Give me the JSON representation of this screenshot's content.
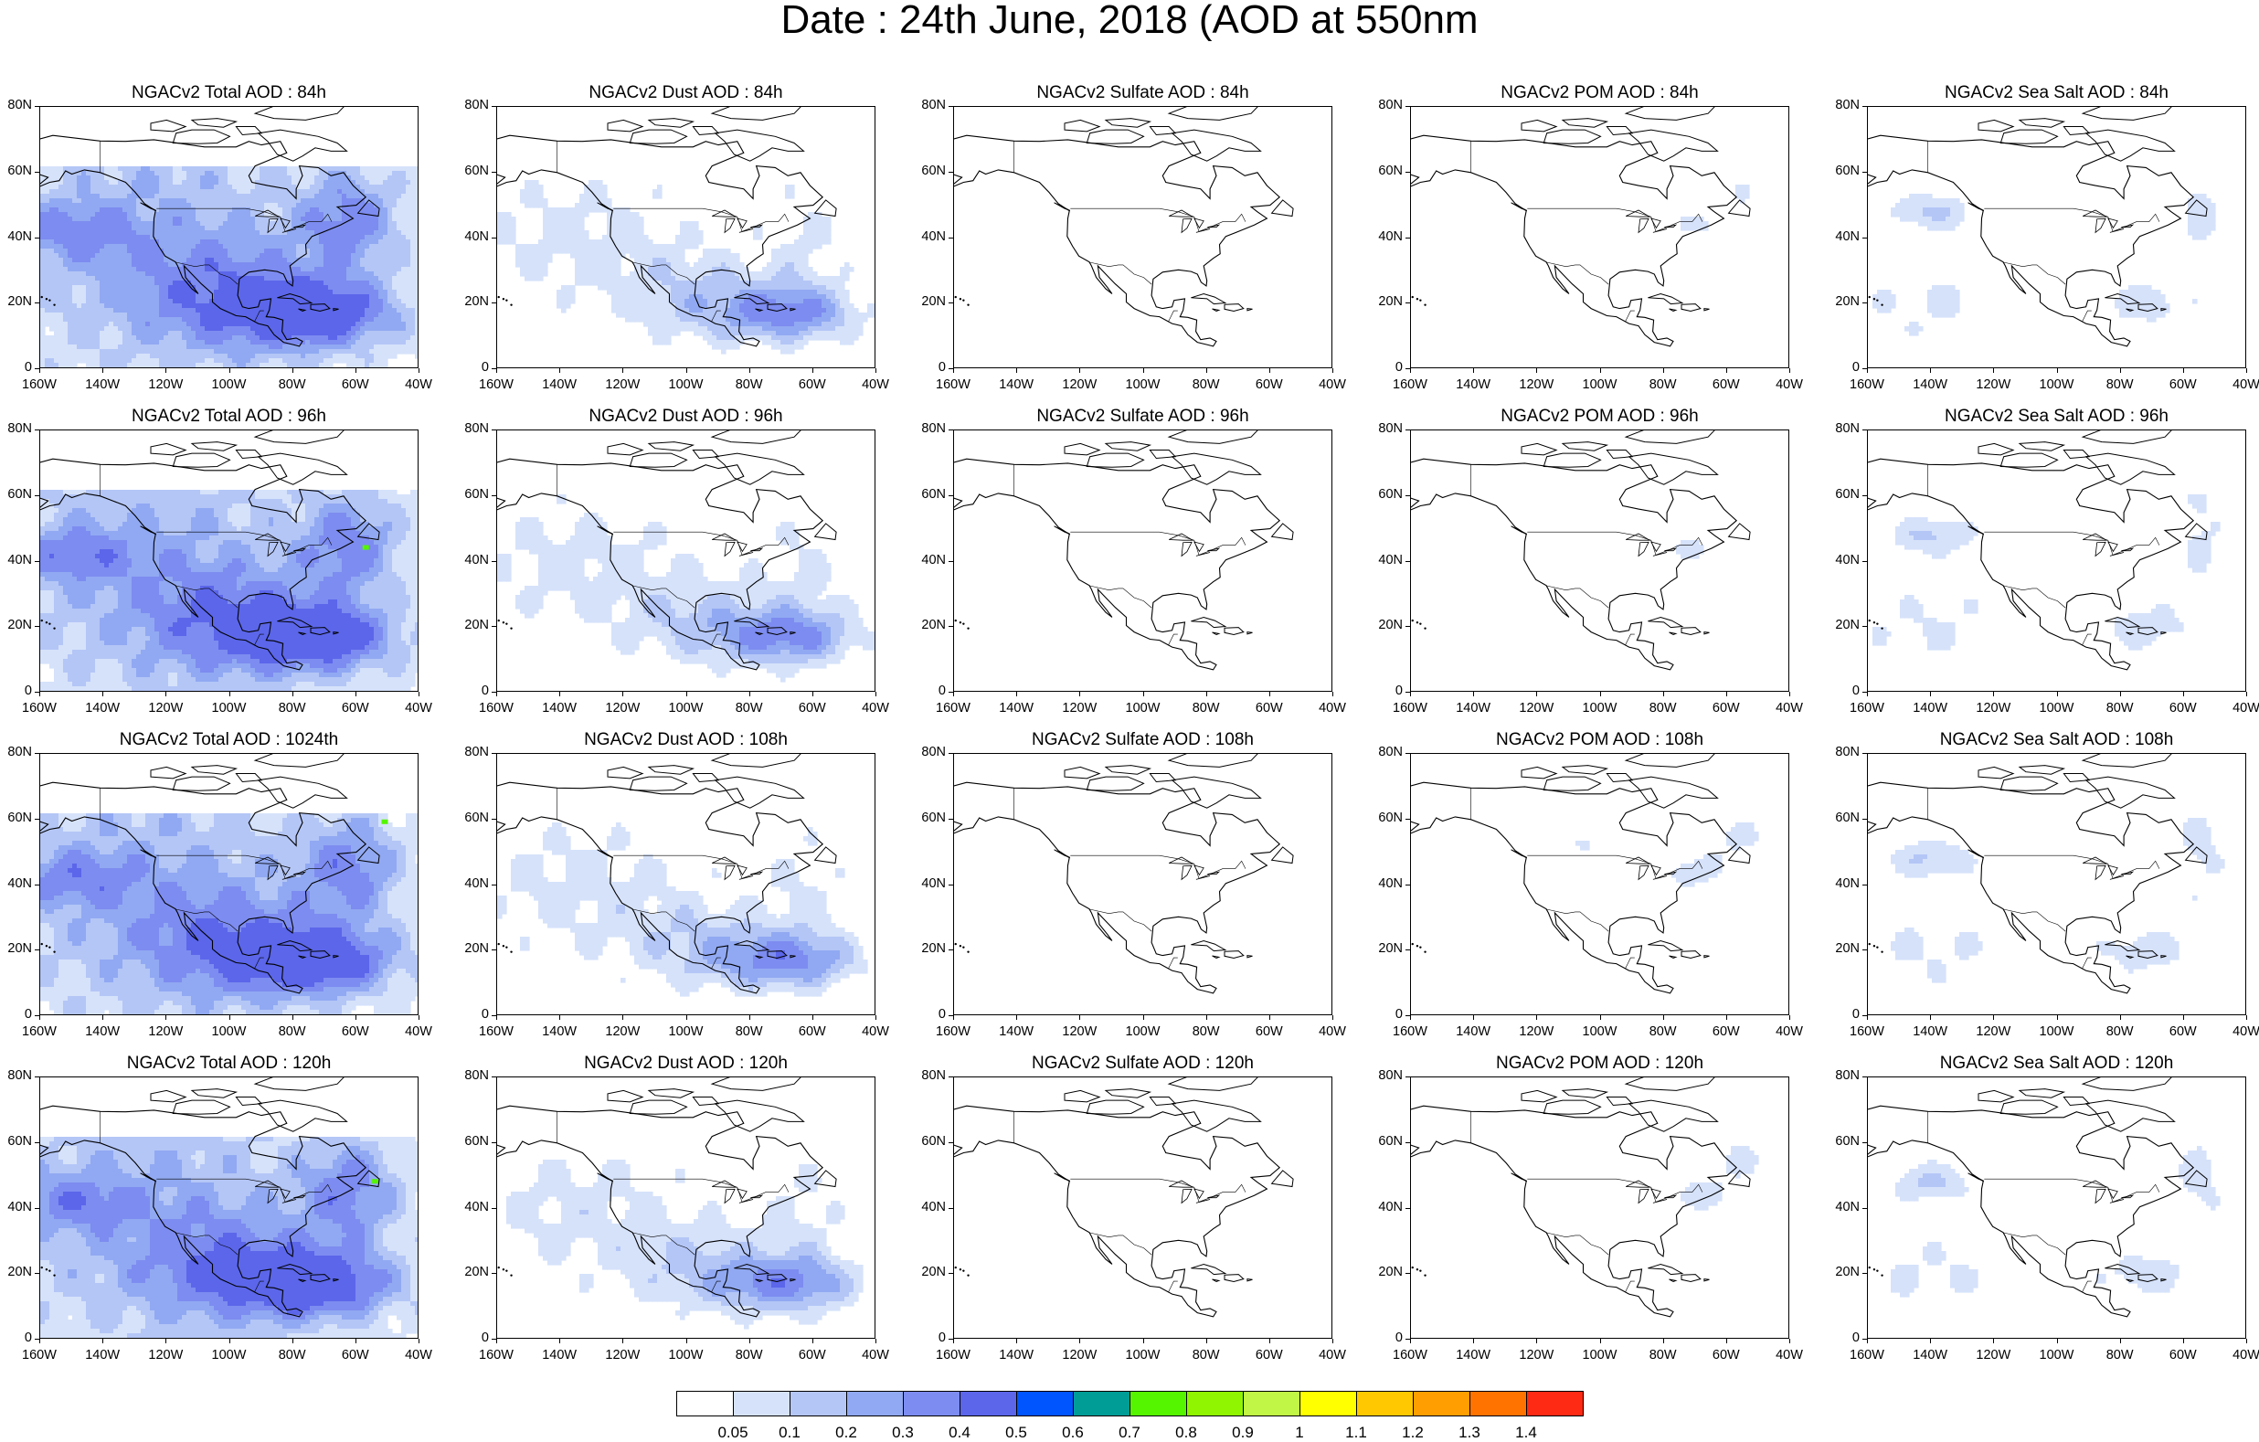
{
  "title": "Date : 24th June, 2018 (AOD at 550nm",
  "map_extent": {
    "lon": [
      -160,
      -40
    ],
    "lat": [
      0,
      80
    ]
  },
  "lat_ticks": [
    "80N",
    "60N",
    "40N",
    "20N",
    "0"
  ],
  "lon_ticks": [
    "160W",
    "140W",
    "120W",
    "100W",
    "80W",
    "60W",
    "40W"
  ],
  "panels": [
    {
      "title": "NGACv2 Total AOD : 84h",
      "variable": "total",
      "intensity": 1.0
    },
    {
      "title": "NGACv2 Dust AOD : 84h",
      "variable": "dust",
      "intensity": 0.8
    },
    {
      "title": "NGACv2 Sulfate AOD : 84h",
      "variable": "sulfate",
      "intensity": 0.3
    },
    {
      "title": "NGACv2 POM AOD : 84h",
      "variable": "pom",
      "intensity": 0.5
    },
    {
      "title": "NGACv2 Sea Salt AOD : 84h",
      "variable": "seasalt",
      "intensity": 0.6
    },
    {
      "title": "NGACv2 Total AOD : 96h",
      "variable": "total",
      "intensity": 1.0
    },
    {
      "title": "NGACv2 Dust AOD : 96h",
      "variable": "dust",
      "intensity": 0.8
    },
    {
      "title": "NGACv2 Sulfate AOD : 96h",
      "variable": "sulfate",
      "intensity": 0.3
    },
    {
      "title": "NGACv2 POM AOD : 96h",
      "variable": "pom",
      "intensity": 0.5
    },
    {
      "title": "NGACv2 Sea Salt AOD : 96h",
      "variable": "seasalt",
      "intensity": 0.6
    },
    {
      "title": "NGACv2 Total AOD : 1024th",
      "variable": "total",
      "intensity": 1.0
    },
    {
      "title": "NGACv2 Dust AOD : 108h",
      "variable": "dust",
      "intensity": 0.8
    },
    {
      "title": "NGACv2 Sulfate AOD : 108h",
      "variable": "sulfate",
      "intensity": 0.3
    },
    {
      "title": "NGACv2 POM AOD : 108h",
      "variable": "pom",
      "intensity": 0.6
    },
    {
      "title": "NGACv2 Sea Salt AOD : 108h",
      "variable": "seasalt",
      "intensity": 0.6
    },
    {
      "title": "NGACv2 Total AOD : 120h",
      "variable": "total",
      "intensity": 1.0
    },
    {
      "title": "NGACv2 Dust AOD : 120h",
      "variable": "dust",
      "intensity": 0.8
    },
    {
      "title": "NGACv2 Sulfate AOD : 120h",
      "variable": "sulfate",
      "intensity": 0.3
    },
    {
      "title": "NGACv2 POM AOD : 120h",
      "variable": "pom",
      "intensity": 0.6
    },
    {
      "title": "NGACv2 Sea Salt  AOD : 120h",
      "variable": "seasalt",
      "intensity": 0.6
    }
  ],
  "colorbar": {
    "colors": [
      "#ffffff",
      "#d6e2fa",
      "#b4c6f6",
      "#91a9f2",
      "#7d8cf0",
      "#5b66ea",
      "#0055ff",
      "#009c96",
      "#55f500",
      "#8ff500",
      "#c1f546",
      "#ffff00",
      "#ffc800",
      "#ff9e00",
      "#ff7300",
      "#ff2a14"
    ],
    "labels": [
      "0.05",
      "0.1",
      "0.2",
      "0.3",
      "0.4",
      "0.5",
      "0.6",
      "0.7",
      "0.8",
      "0.9",
      "1",
      "1.1",
      "1.2",
      "1.3",
      "1.4"
    ]
  }
}
